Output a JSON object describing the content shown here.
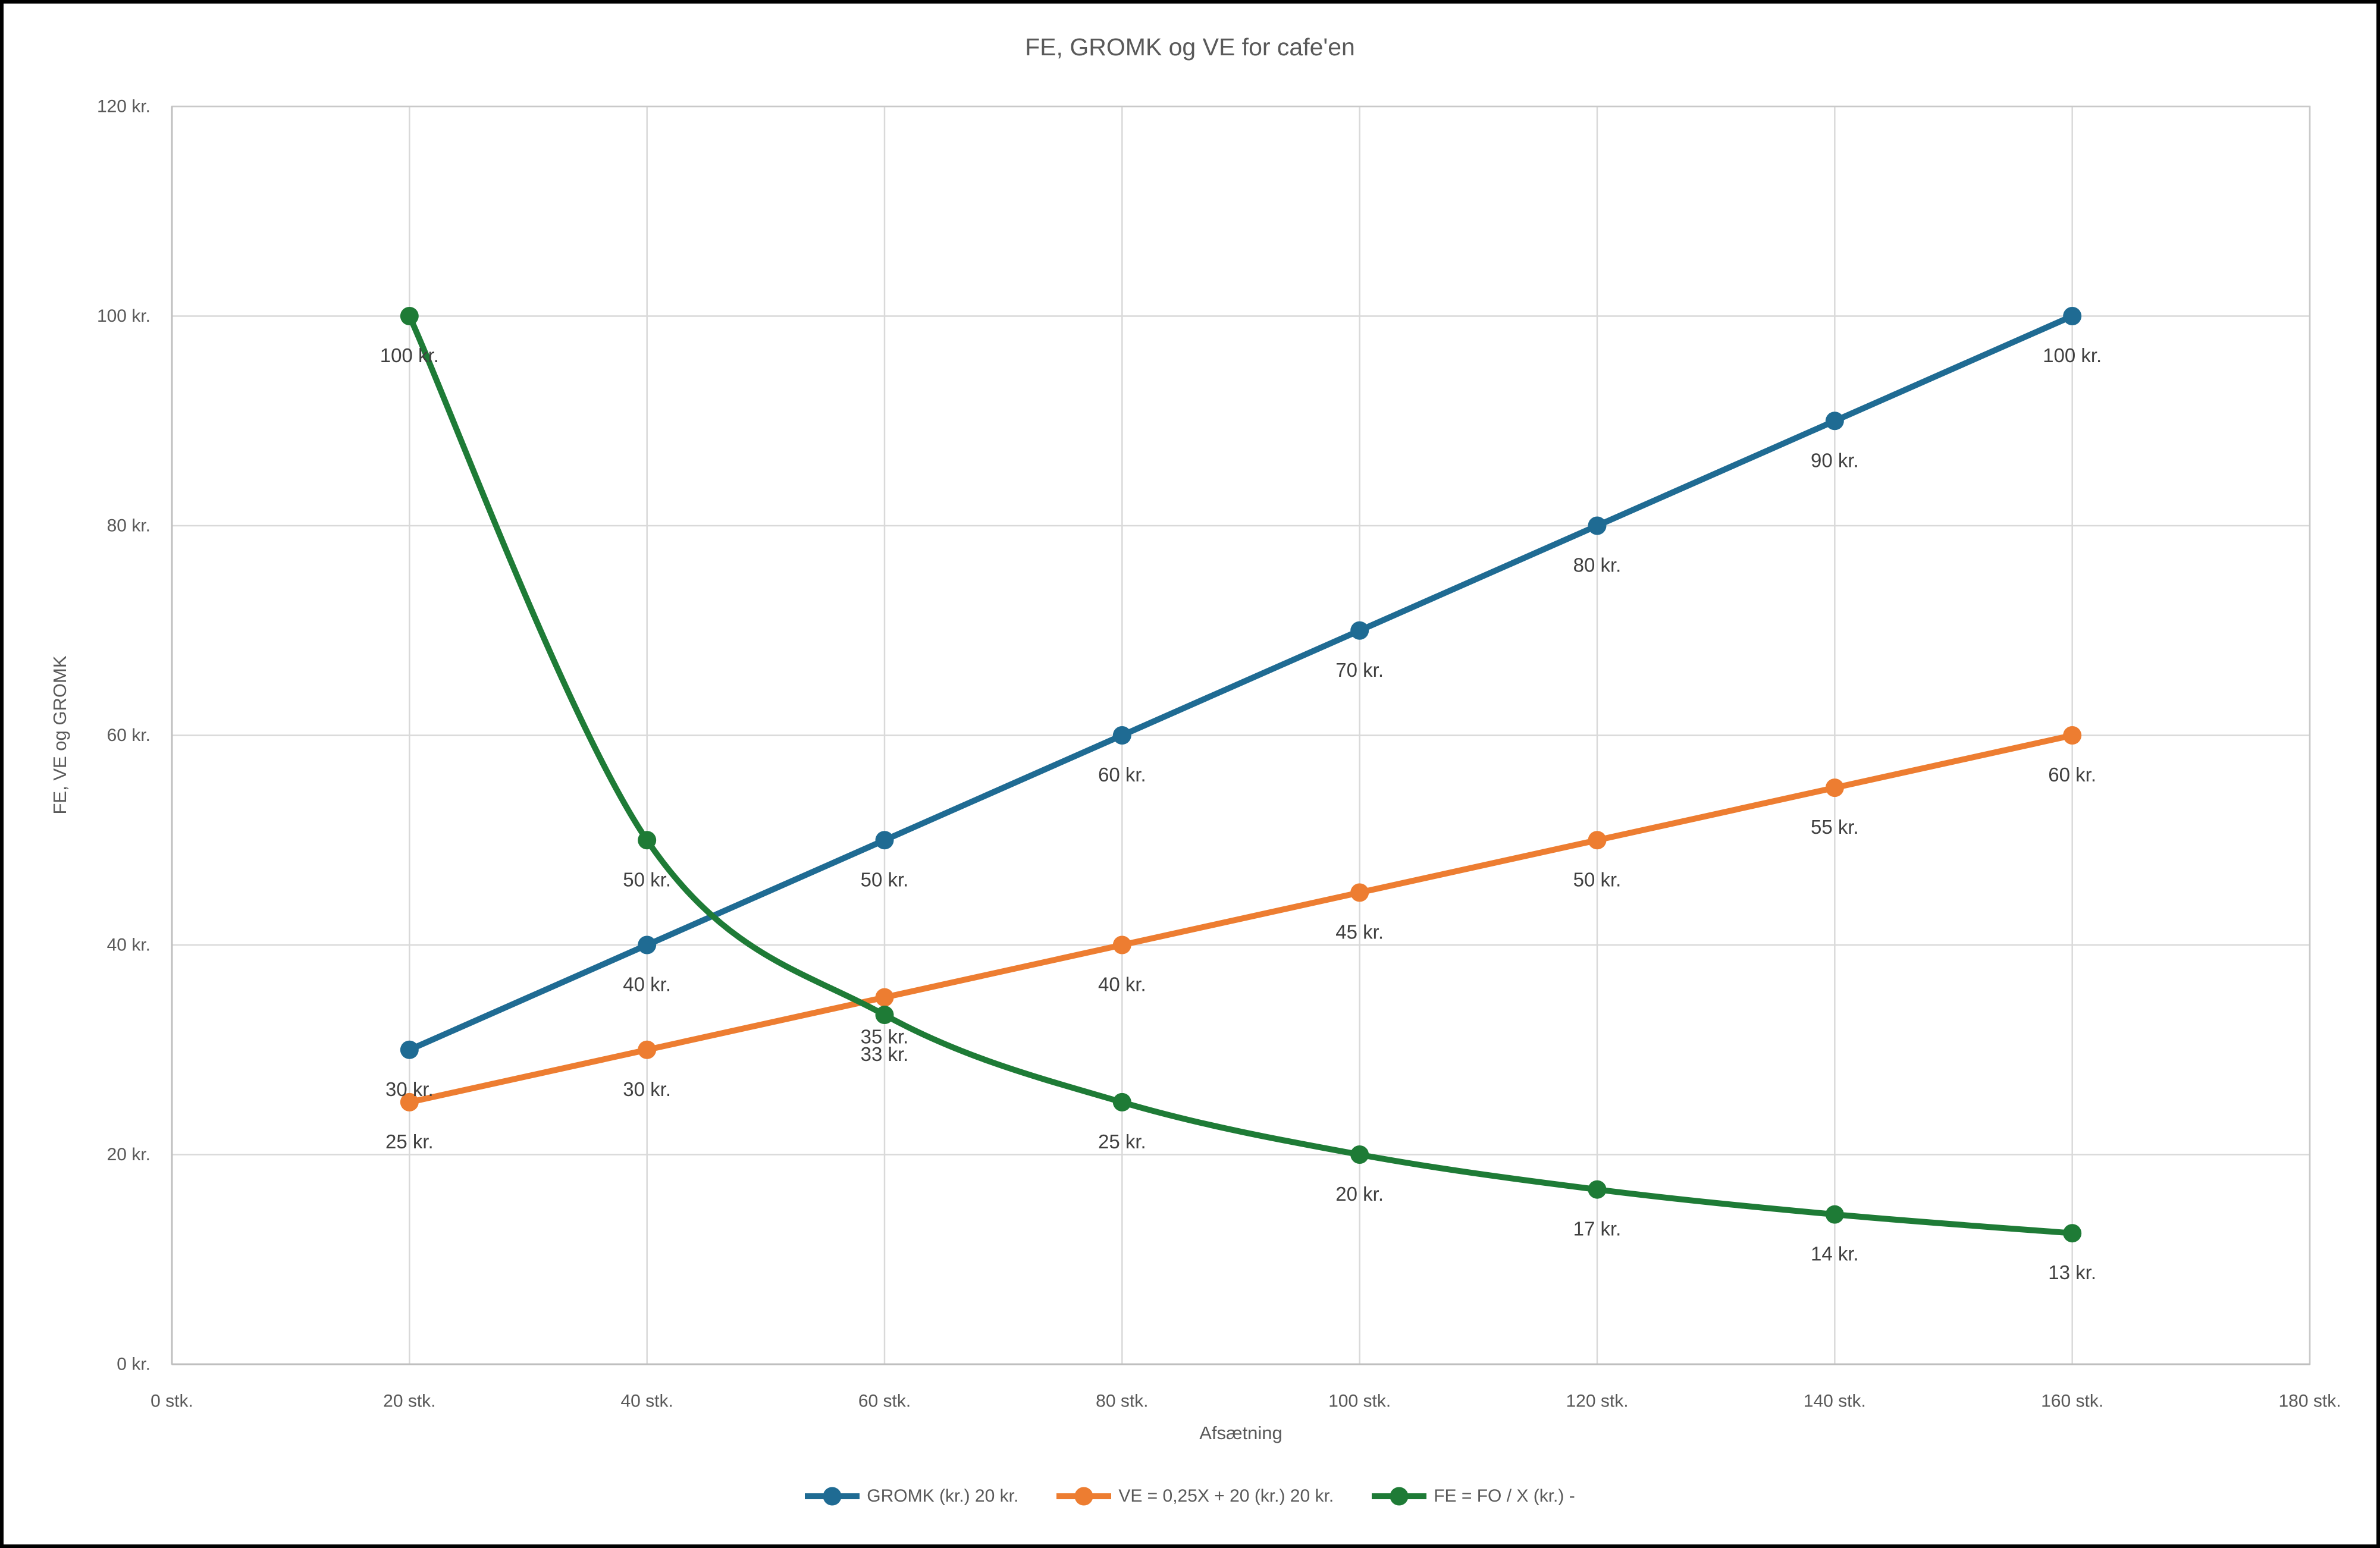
{
  "frame": {
    "border_color": "#000000",
    "background": "#ffffff"
  },
  "chart_data": {
    "type": "line",
    "title": "FE, GROMK og VE for cafe'en",
    "xlabel": "Afsætning",
    "ylabel": "FE, VE og GROMK",
    "xlim": [
      0,
      180
    ],
    "ylim": [
      0,
      120
    ],
    "grid": true,
    "legend_position": "bottom",
    "x_ticks": [
      0,
      20,
      40,
      60,
      80,
      100,
      120,
      140,
      160,
      180
    ],
    "x_tick_labels": [
      "0 stk.",
      "20 stk.",
      "40 stk.",
      "60 stk.",
      "80 stk.",
      "100 stk.",
      "120 stk.",
      "140 stk.",
      "160 stk.",
      "180 stk."
    ],
    "y_ticks": [
      0,
      20,
      40,
      60,
      80,
      100,
      120
    ],
    "y_tick_labels": [
      "0 kr.",
      "20 kr.",
      "40 kr.",
      "60 kr.",
      "80 kr.",
      "100 kr.",
      "120 kr."
    ],
    "x": [
      20,
      40,
      60,
      80,
      100,
      120,
      140,
      160
    ],
    "series": [
      {
        "name": "GROMK (kr.) 20 kr.",
        "color": "#1F6B93",
        "smooth": false,
        "values": [
          30,
          40,
          50,
          60,
          70,
          80,
          90,
          100
        ],
        "labels": [
          "30 kr.",
          "40 kr.",
          "50 kr.",
          "60 kr.",
          "70 kr.",
          "80 kr.",
          "90 kr.",
          "100 kr."
        ]
      },
      {
        "name": "VE = 0,25X + 20 (kr.) 20 kr.",
        "color": "#ED7D31",
        "smooth": false,
        "values": [
          25,
          30,
          35,
          40,
          45,
          50,
          55,
          60
        ],
        "labels": [
          "25 kr.",
          "30 kr.",
          "35 kr.",
          "40 kr.",
          "45 kr.",
          "50 kr.",
          "55 kr.",
          "60 kr."
        ]
      },
      {
        "name": "FE = FO / X (kr.) -",
        "color": "#1E7B36",
        "smooth": true,
        "values": [
          100,
          50,
          33.33,
          25,
          20,
          16.67,
          14.29,
          12.5
        ],
        "labels": [
          "100 kr.",
          "50 kr.",
          "33 kr.",
          "25 kr.",
          "20 kr.",
          "17 kr.",
          "14 kr.",
          "13 kr."
        ]
      }
    ],
    "colors": {
      "grid": "#D9D9D9",
      "plot_border": "#C9C9C9",
      "axis": "#BFBFBF",
      "tick_text": "#595959",
      "label_text": "#404040",
      "title_text": "#595959"
    }
  }
}
